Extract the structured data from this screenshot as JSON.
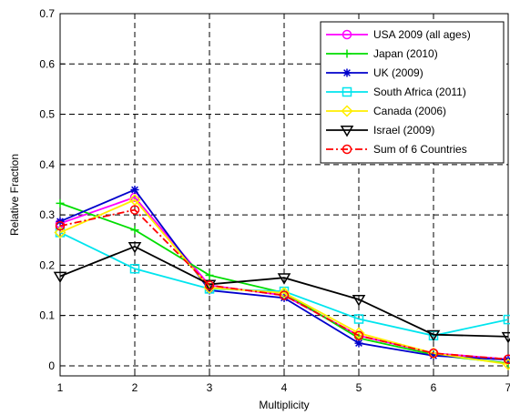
{
  "chart_data": {
    "type": "line",
    "title": "",
    "xlabel": "Multiplicity",
    "ylabel": "Relative Fraction",
    "xlim": [
      1,
      7
    ],
    "ylim": [
      -0.02,
      0.7
    ],
    "xticks": [
      "1",
      "2",
      "3",
      "4",
      "5",
      "6",
      "7"
    ],
    "yticks": [
      "0",
      "0.1",
      "0.2",
      "0.3",
      "0.4",
      "0.5",
      "0.6",
      "0.7"
    ],
    "grid": true,
    "legend_position": "top-right",
    "x": [
      1,
      2,
      3,
      4,
      5,
      6,
      7
    ],
    "series": [
      {
        "name": "USA 2009 (all ages)",
        "color": "#ff00ff",
        "marker": "circle",
        "line": "solid",
        "values": [
          0.283,
          0.335,
          0.16,
          0.14,
          0.06,
          0.025,
          0.013
        ]
      },
      {
        "name": "Japan (2010)",
        "color": "#00dd00",
        "marker": "plus",
        "line": "solid",
        "values": [
          0.323,
          0.27,
          0.18,
          0.145,
          0.055,
          0.022,
          0.005
        ]
      },
      {
        "name": "UK (2009)",
        "color": "#0000cc",
        "marker": "star",
        "line": "solid",
        "values": [
          0.287,
          0.35,
          0.15,
          0.135,
          0.045,
          0.02,
          0.012
        ]
      },
      {
        "name": "South Africa (2011)",
        "color": "#00e5ee",
        "marker": "square",
        "line": "solid",
        "values": [
          0.265,
          0.193,
          0.153,
          0.148,
          0.093,
          0.06,
          0.092
        ]
      },
      {
        "name": "Canada (2006)",
        "color": "#ffee00",
        "marker": "diamond",
        "line": "solid",
        "values": [
          0.265,
          0.33,
          0.155,
          0.145,
          0.065,
          0.025,
          0.003
        ]
      },
      {
        "name": "Israel (2009)",
        "color": "#000000",
        "marker": "triangle-down",
        "line": "solid",
        "values": [
          0.178,
          0.237,
          0.162,
          0.175,
          0.132,
          0.062,
          0.058
        ]
      },
      {
        "name": "Sum of 6 Countries",
        "color": "#ff0000",
        "marker": "circle",
        "line": "dashdot",
        "values": [
          0.278,
          0.31,
          0.16,
          0.14,
          0.06,
          0.025,
          0.013
        ]
      }
    ]
  }
}
